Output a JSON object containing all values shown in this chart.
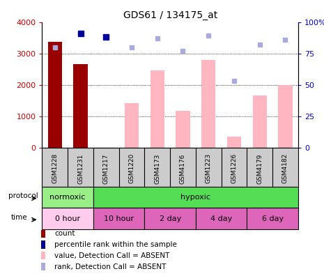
{
  "title": "GDS61 / 134175_at",
  "samples": [
    "GSM1228",
    "GSM1231",
    "GSM1217",
    "GSM1220",
    "GSM4173",
    "GSM4176",
    "GSM1223",
    "GSM1226",
    "GSM4179",
    "GSM4182"
  ],
  "bar_values_dark": [
    3380,
    2660,
    0,
    0,
    0,
    0,
    0,
    0,
    0,
    0
  ],
  "bar_values_light": [
    1400,
    0,
    0,
    1420,
    2450,
    1180,
    2800,
    360,
    1660,
    2000
  ],
  "rank_squares_dark": [
    0,
    91,
    88,
    0,
    0,
    0,
    0,
    0,
    0,
    0
  ],
  "rank_squares_light": [
    80,
    0,
    0,
    80,
    87,
    77,
    89,
    53,
    82,
    86
  ],
  "dark_bar_color": "#990000",
  "light_bar_color": "#FFB6C1",
  "dark_square_color": "#000099",
  "light_square_color": "#AAAADD",
  "ylim_left": [
    0,
    4000
  ],
  "ylim_right": [
    0,
    100
  ],
  "yticks_left": [
    0,
    1000,
    2000,
    3000,
    4000
  ],
  "yticks_right": [
    0,
    25,
    50,
    75,
    100
  ],
  "ytick_labels_right": [
    "0",
    "25",
    "50",
    "75",
    "100%"
  ],
  "left_axis_color": "#CC0000",
  "right_axis_color": "#0000CC",
  "bar_width": 0.55,
  "protocol_groups": [
    {
      "label": "normoxic",
      "start": 0,
      "end": 2,
      "color": "#99EE88"
    },
    {
      "label": "hypoxic",
      "start": 2,
      "end": 10,
      "color": "#55DD55"
    }
  ],
  "time_groups": [
    {
      "label": "0 hour",
      "start": 0,
      "end": 2,
      "color": "#FFCCEE"
    },
    {
      "label": "10 hour",
      "start": 2,
      "end": 4,
      "color": "#EE88CC"
    },
    {
      "label": "2 day",
      "start": 4,
      "end": 6,
      "color": "#EE88CC"
    },
    {
      "label": "4 day",
      "start": 6,
      "end": 8,
      "color": "#EE88CC"
    },
    {
      "label": "6 day",
      "start": 8,
      "end": 10,
      "color": "#EE88CC"
    }
  ],
  "legend_items": [
    {
      "label": "count",
      "color": "#990000"
    },
    {
      "label": "percentile rank within the sample",
      "color": "#000099"
    },
    {
      "label": "value, Detection Call = ABSENT",
      "color": "#FFB6C1"
    },
    {
      "label": "rank, Detection Call = ABSENT",
      "color": "#AAAADD"
    }
  ],
  "bg_color": "#FFFFFF",
  "xtick_bg": "#CCCCCC"
}
